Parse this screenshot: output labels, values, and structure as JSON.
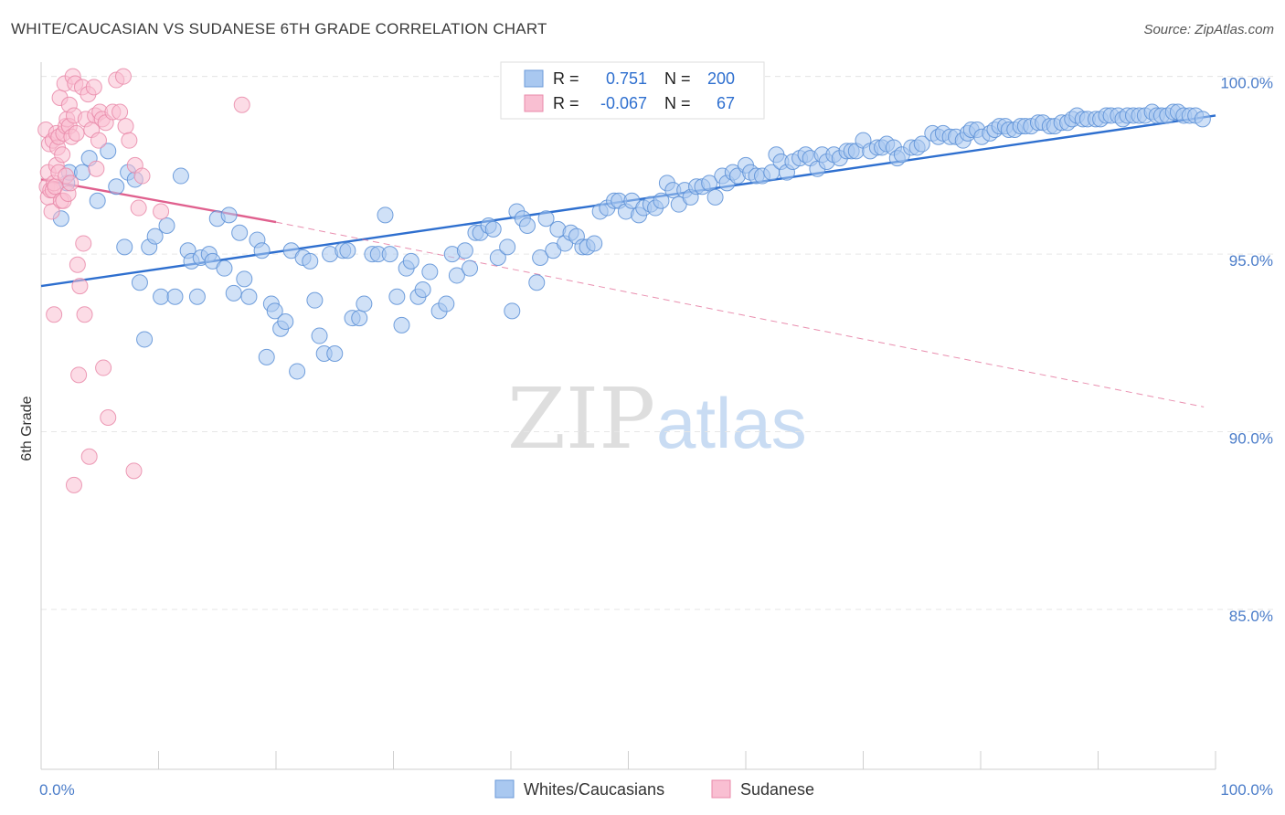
{
  "title": "WHITE/CAUCASIAN VS SUDANESE 6TH GRADE CORRELATION CHART",
  "source": "Source: ZipAtlas.com",
  "watermark": {
    "zip": "ZIP",
    "atlas": "atlas"
  },
  "legend": {
    "r_label": "R =",
    "n_label": "N =",
    "rows": [
      {
        "r": "0.751",
        "n": "200",
        "color": "#a9c8f0",
        "stroke": "#6b9ad8"
      },
      {
        "r": "-0.067",
        "n": "67",
        "color": "#f9bfd2",
        "stroke": "#e98aa9"
      }
    ]
  },
  "chart_data": {
    "type": "scatter",
    "title": "WHITE/CAUCASIAN VS SUDANESE 6TH GRADE CORRELATION CHART",
    "xlabel": "",
    "ylabel": "6th Grade",
    "xlim": [
      0,
      100
    ],
    "ylim": [
      80.5,
      100.3
    ],
    "x_tick_labels": [
      "0.0%",
      "100.0%"
    ],
    "y_ticks": [
      85,
      90,
      95,
      100
    ],
    "y_tick_labels": [
      "85.0%",
      "90.0%",
      "95.0%",
      "100.0%"
    ],
    "grid": true,
    "legend_position": "top-center",
    "series": [
      {
        "name": "Whites/Caucasians",
        "color": "#a9c8f0",
        "stroke": "#5b8fd6",
        "trend": {
          "x": [
            0,
            100
          ],
          "y": [
            94.1,
            98.9
          ],
          "color": "#2e6fcf"
        },
        "points": [
          [
            1.7,
            96.0
          ],
          [
            2.2,
            97.0
          ],
          [
            2.4,
            97.3
          ],
          [
            3.5,
            97.3
          ],
          [
            4.1,
            97.7
          ],
          [
            4.8,
            96.5
          ],
          [
            5.7,
            97.9
          ],
          [
            6.4,
            96.9
          ],
          [
            7.1,
            95.2
          ],
          [
            7.4,
            97.3
          ],
          [
            8.0,
            97.1
          ],
          [
            8.4,
            94.2
          ],
          [
            8.8,
            92.6
          ],
          [
            9.2,
            95.2
          ],
          [
            9.7,
            95.5
          ],
          [
            10.2,
            93.8
          ],
          [
            10.7,
            95.8
          ],
          [
            11.4,
            93.8
          ],
          [
            11.9,
            97.2
          ],
          [
            12.5,
            95.1
          ],
          [
            12.8,
            94.8
          ],
          [
            13.3,
            93.8
          ],
          [
            13.6,
            94.9
          ],
          [
            14.3,
            95.0
          ],
          [
            14.6,
            94.8
          ],
          [
            15.0,
            96.0
          ],
          [
            15.6,
            94.6
          ],
          [
            16.0,
            96.1
          ],
          [
            16.4,
            93.9
          ],
          [
            16.9,
            95.6
          ],
          [
            17.3,
            94.3
          ],
          [
            17.7,
            93.8
          ],
          [
            18.4,
            95.4
          ],
          [
            18.8,
            95.1
          ],
          [
            19.2,
            92.1
          ],
          [
            19.6,
            93.6
          ],
          [
            19.9,
            93.4
          ],
          [
            20.4,
            92.9
          ],
          [
            20.8,
            93.1
          ],
          [
            21.3,
            95.1
          ],
          [
            21.8,
            91.7
          ],
          [
            22.3,
            94.9
          ],
          [
            22.9,
            94.8
          ],
          [
            23.3,
            93.7
          ],
          [
            23.7,
            92.7
          ],
          [
            24.1,
            92.2
          ],
          [
            24.6,
            95.0
          ],
          [
            25.0,
            92.2
          ],
          [
            25.7,
            95.1
          ],
          [
            26.1,
            95.1
          ],
          [
            26.5,
            93.2
          ],
          [
            27.1,
            93.2
          ],
          [
            27.5,
            93.6
          ],
          [
            28.2,
            95.0
          ],
          [
            28.7,
            95.0
          ],
          [
            29.3,
            96.1
          ],
          [
            29.7,
            95.0
          ],
          [
            30.3,
            93.8
          ],
          [
            30.7,
            93.0
          ],
          [
            31.1,
            94.6
          ],
          [
            31.5,
            94.8
          ],
          [
            32.1,
            93.8
          ],
          [
            32.5,
            94.0
          ],
          [
            33.1,
            94.5
          ],
          [
            33.9,
            93.4
          ],
          [
            34.5,
            93.6
          ],
          [
            35.0,
            95.0
          ],
          [
            35.4,
            94.4
          ],
          [
            36.1,
            95.1
          ],
          [
            36.5,
            94.6
          ],
          [
            37.0,
            95.6
          ],
          [
            37.4,
            95.6
          ],
          [
            38.1,
            95.8
          ],
          [
            38.5,
            95.7
          ],
          [
            38.9,
            94.9
          ],
          [
            39.7,
            95.2
          ],
          [
            40.1,
            93.4
          ],
          [
            40.5,
            96.2
          ],
          [
            41.0,
            96.0
          ],
          [
            41.4,
            95.8
          ],
          [
            42.2,
            94.2
          ],
          [
            42.5,
            94.9
          ],
          [
            43.0,
            96.0
          ],
          [
            43.6,
            95.1
          ],
          [
            44.0,
            95.7
          ],
          [
            44.6,
            95.3
          ],
          [
            45.1,
            95.6
          ],
          [
            45.6,
            95.5
          ],
          [
            46.1,
            95.2
          ],
          [
            46.5,
            95.2
          ],
          [
            47.1,
            95.3
          ],
          [
            47.6,
            96.2
          ],
          [
            48.2,
            96.3
          ],
          [
            48.8,
            96.5
          ],
          [
            49.2,
            96.5
          ],
          [
            49.8,
            96.2
          ],
          [
            50.3,
            96.5
          ],
          [
            50.9,
            96.1
          ],
          [
            51.3,
            96.3
          ],
          [
            51.9,
            96.4
          ],
          [
            52.3,
            96.3
          ],
          [
            52.8,
            96.5
          ],
          [
            53.3,
            97.0
          ],
          [
            53.8,
            96.8
          ],
          [
            54.3,
            96.4
          ],
          [
            54.8,
            96.8
          ],
          [
            55.3,
            96.6
          ],
          [
            55.8,
            96.9
          ],
          [
            56.3,
            96.9
          ],
          [
            56.9,
            97.0
          ],
          [
            57.4,
            96.6
          ],
          [
            58.0,
            97.2
          ],
          [
            58.4,
            97.0
          ],
          [
            58.9,
            97.3
          ],
          [
            59.3,
            97.2
          ],
          [
            60.0,
            97.5
          ],
          [
            60.4,
            97.3
          ],
          [
            60.9,
            97.2
          ],
          [
            61.4,
            97.2
          ],
          [
            62.2,
            97.3
          ],
          [
            62.6,
            97.8
          ],
          [
            63.0,
            97.6
          ],
          [
            63.5,
            97.3
          ],
          [
            64.0,
            97.6
          ],
          [
            64.6,
            97.7
          ],
          [
            65.1,
            97.8
          ],
          [
            65.5,
            97.7
          ],
          [
            66.1,
            97.4
          ],
          [
            66.5,
            97.8
          ],
          [
            66.9,
            97.6
          ],
          [
            67.5,
            97.8
          ],
          [
            68.0,
            97.7
          ],
          [
            68.6,
            97.9
          ],
          [
            69.0,
            97.9
          ],
          [
            69.4,
            97.9
          ],
          [
            70.0,
            98.2
          ],
          [
            70.6,
            97.9
          ],
          [
            71.2,
            98.0
          ],
          [
            71.6,
            98.0
          ],
          [
            72.0,
            98.1
          ],
          [
            72.6,
            98.0
          ],
          [
            72.9,
            97.7
          ],
          [
            73.3,
            97.8
          ],
          [
            74.1,
            98.0
          ],
          [
            74.6,
            98.0
          ],
          [
            75.0,
            98.1
          ],
          [
            75.9,
            98.4
          ],
          [
            76.4,
            98.3
          ],
          [
            76.8,
            98.4
          ],
          [
            77.4,
            98.3
          ],
          [
            77.9,
            98.3
          ],
          [
            78.5,
            98.2
          ],
          [
            78.9,
            98.4
          ],
          [
            79.2,
            98.5
          ],
          [
            79.7,
            98.5
          ],
          [
            80.1,
            98.3
          ],
          [
            80.8,
            98.4
          ],
          [
            81.2,
            98.5
          ],
          [
            81.6,
            98.6
          ],
          [
            82.1,
            98.6
          ],
          [
            82.4,
            98.5
          ],
          [
            82.9,
            98.5
          ],
          [
            83.4,
            98.6
          ],
          [
            83.8,
            98.6
          ],
          [
            84.3,
            98.6
          ],
          [
            84.9,
            98.7
          ],
          [
            85.3,
            98.7
          ],
          [
            85.9,
            98.6
          ],
          [
            86.3,
            98.6
          ],
          [
            86.9,
            98.7
          ],
          [
            87.4,
            98.7
          ],
          [
            87.8,
            98.8
          ],
          [
            88.2,
            98.9
          ],
          [
            88.7,
            98.8
          ],
          [
            89.1,
            98.8
          ],
          [
            89.8,
            98.8
          ],
          [
            90.2,
            98.8
          ],
          [
            90.7,
            98.9
          ],
          [
            91.1,
            98.9
          ],
          [
            91.7,
            98.9
          ],
          [
            92.1,
            98.8
          ],
          [
            92.5,
            98.9
          ],
          [
            93.0,
            98.9
          ],
          [
            93.5,
            98.9
          ],
          [
            94.0,
            98.9
          ],
          [
            94.6,
            99.0
          ],
          [
            95.0,
            98.9
          ],
          [
            95.4,
            98.9
          ],
          [
            95.9,
            98.9
          ],
          [
            96.4,
            99.0
          ],
          [
            96.8,
            99.0
          ],
          [
            97.3,
            98.9
          ],
          [
            97.8,
            98.9
          ],
          [
            98.3,
            98.9
          ],
          [
            98.9,
            98.8
          ]
        ]
      },
      {
        "name": "Sudanese",
        "color": "#f9bfd2",
        "stroke": "#e98aa9",
        "trend": {
          "x": [
            0,
            20
          ],
          "y": [
            97.1,
            95.9
          ],
          "color": "#e0608e",
          "dashed_x": [
            20,
            99
          ],
          "dashed_y": [
            95.9,
            90.7
          ]
        },
        "points": [
          [
            0.4,
            98.5
          ],
          [
            0.5,
            96.9
          ],
          [
            0.6,
            97.3
          ],
          [
            0.6,
            96.6
          ],
          [
            0.7,
            98.1
          ],
          [
            0.8,
            96.8
          ],
          [
            0.9,
            96.2
          ],
          [
            1.0,
            96.8
          ],
          [
            1.0,
            98.2
          ],
          [
            1.1,
            97.0
          ],
          [
            1.1,
            93.3
          ],
          [
            1.2,
            96.9
          ],
          [
            1.3,
            97.5
          ],
          [
            1.3,
            98.4
          ],
          [
            1.4,
            98.0
          ],
          [
            1.5,
            97.3
          ],
          [
            1.5,
            98.3
          ],
          [
            1.6,
            99.4
          ],
          [
            1.7,
            96.5
          ],
          [
            1.8,
            97.8
          ],
          [
            1.9,
            98.4
          ],
          [
            1.9,
            96.5
          ],
          [
            2.0,
            99.8
          ],
          [
            2.1,
            97.2
          ],
          [
            2.1,
            98.6
          ],
          [
            2.2,
            98.8
          ],
          [
            2.3,
            96.7
          ],
          [
            2.4,
            99.2
          ],
          [
            2.4,
            98.6
          ],
          [
            2.5,
            97.0
          ],
          [
            2.6,
            98.3
          ],
          [
            2.7,
            100.0
          ],
          [
            2.8,
            98.9
          ],
          [
            2.9,
            99.8
          ],
          [
            3.0,
            98.4
          ],
          [
            3.1,
            94.7
          ],
          [
            3.2,
            91.6
          ],
          [
            3.3,
            94.1
          ],
          [
            3.5,
            99.7
          ],
          [
            3.6,
            95.3
          ],
          [
            3.7,
            93.3
          ],
          [
            3.8,
            98.8
          ],
          [
            4.0,
            99.5
          ],
          [
            4.1,
            89.3
          ],
          [
            4.3,
            98.5
          ],
          [
            4.5,
            99.7
          ],
          [
            4.6,
            98.9
          ],
          [
            4.7,
            97.4
          ],
          [
            4.9,
            98.2
          ],
          [
            5.0,
            99.0
          ],
          [
            5.2,
            98.8
          ],
          [
            5.3,
            91.8
          ],
          [
            5.5,
            98.7
          ],
          [
            5.7,
            90.4
          ],
          [
            6.1,
            99.0
          ],
          [
            6.4,
            99.9
          ],
          [
            6.7,
            99.0
          ],
          [
            7.0,
            100.0
          ],
          [
            7.2,
            98.6
          ],
          [
            7.5,
            98.2
          ],
          [
            7.9,
            88.9
          ],
          [
            8.0,
            97.5
          ],
          [
            8.3,
            96.3
          ],
          [
            8.6,
            97.2
          ],
          [
            2.8,
            88.5
          ],
          [
            10.2,
            96.2
          ],
          [
            17.1,
            99.2
          ]
        ]
      }
    ]
  },
  "bottom_legend": [
    "Whites/Caucasians",
    "Sudanese"
  ]
}
